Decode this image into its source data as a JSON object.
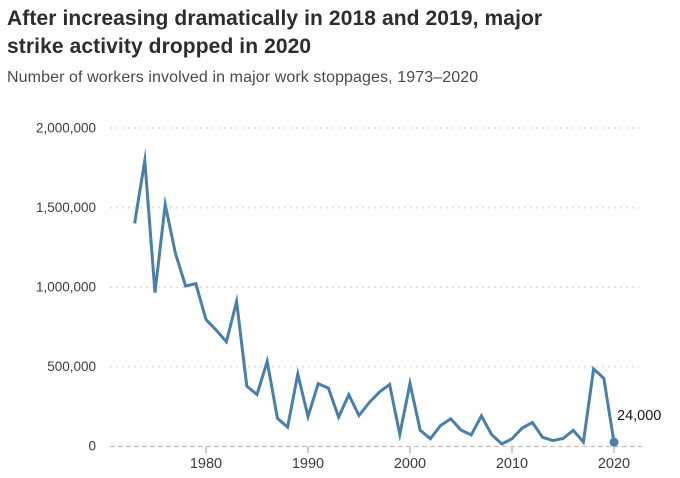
{
  "header": {
    "title_lines": [
      "After increasing dramatically in 2018 and 2019, major",
      "strike activity dropped in 2020"
    ],
    "title": "After increasing dramatically in 2018 and 2019, major strike activity dropped in 2020",
    "subtitle": "Number of workers involved in major work stoppages, 1973–2020"
  },
  "chart_data": {
    "type": "line",
    "title": "After increasing dramatically in 2018 and 2019, major strike activity dropped in 2020",
    "subtitle": "Number of workers involved in major work stoppages, 1973–2020",
    "x": [
      1973,
      1974,
      1975,
      1976,
      1977,
      1978,
      1979,
      1980,
      1981,
      1982,
      1983,
      1984,
      1985,
      1986,
      1987,
      1988,
      1989,
      1990,
      1991,
      1992,
      1993,
      1994,
      1995,
      1996,
      1997,
      1998,
      1999,
      2000,
      2001,
      2002,
      2003,
      2004,
      2005,
      2006,
      2007,
      2008,
      2009,
      2010,
      2011,
      2012,
      2013,
      2014,
      2015,
      2016,
      2017,
      2018,
      2019,
      2020
    ],
    "series": [
      {
        "name": "Workers involved in major work stoppages",
        "values": [
          1400000,
          1796000,
          965000,
          1519000,
          1212000,
          1006000,
          1021000,
          795000,
          729000,
          656000,
          909000,
          376000,
          324000,
          533000,
          174000,
          118000,
          452000,
          185000,
          392000,
          364000,
          182000,
          322000,
          192000,
          273000,
          339000,
          387000,
          73000,
          394000,
          99000,
          46000,
          129000,
          171000,
          100000,
          70000,
          189000,
          72000,
          13000,
          45000,
          113000,
          148000,
          55000,
          34000,
          47000,
          99000,
          25000,
          485000,
          426000,
          24000
        ]
      }
    ],
    "xlabel": "",
    "ylabel": "Number of workers involved in major work stoppages",
    "xlim": [
      1972.5,
      2021.5
    ],
    "ylim": [
      0,
      2000000
    ],
    "xticks": [
      1980,
      1990,
      2000,
      2010,
      2020
    ],
    "yticks": [
      0,
      500000,
      1000000,
      1500000,
      2000000
    ],
    "ytick_labels": [
      "0",
      "500,000",
      "1,000,000",
      "1,500,000",
      "2,000,000"
    ],
    "grid": "horizontal-dotted",
    "legend": "none",
    "annotation": {
      "year": 2020,
      "value": 24000,
      "label": "24,000"
    },
    "endpoint_marker": {
      "year": 2020,
      "value": 24000
    },
    "colors": {
      "line": "#4a7fa8",
      "grid": "#e2e2e2",
      "axis": "#c2c2c2",
      "tick": "#ababab",
      "label": "#3c3c3c",
      "annotation_text": "#161616"
    }
  }
}
